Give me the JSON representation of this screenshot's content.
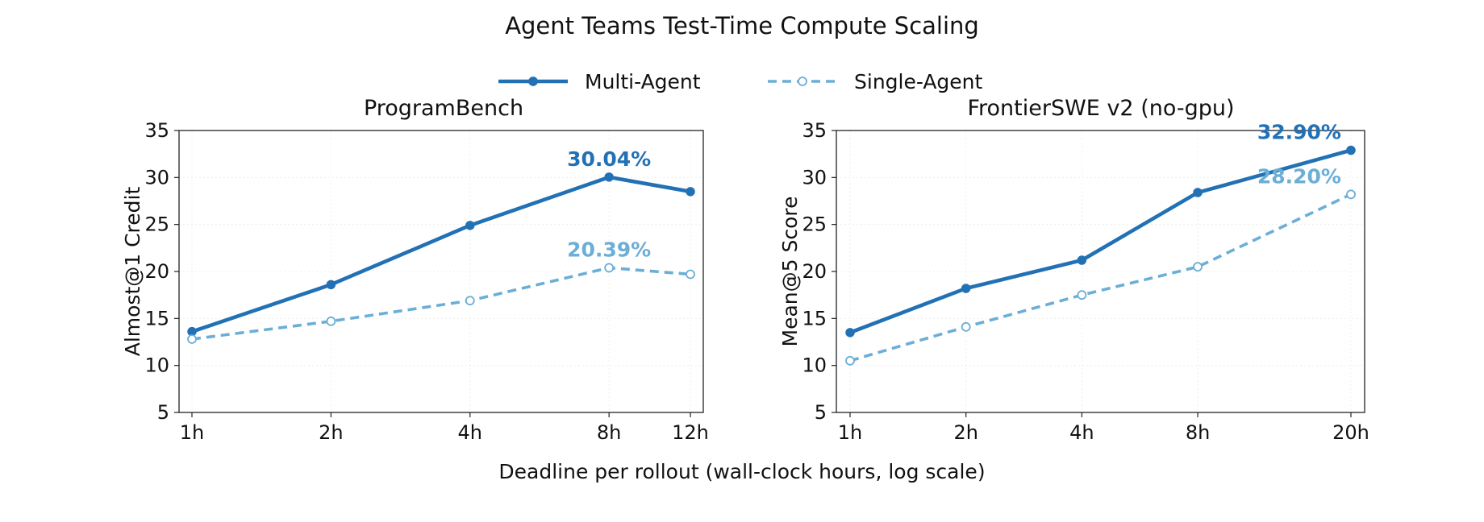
{
  "figure": {
    "title": "Agent Teams Test-Time Compute Scaling",
    "xlabel": "Deadline per rollout (wall-clock hours, log scale)"
  },
  "legend": {
    "placement": "top-center",
    "items": [
      {
        "name": "Multi-Agent",
        "color": "#2271b5",
        "style": "solid",
        "marker": "filled-circle"
      },
      {
        "name": "Single-Agent",
        "color": "#6baed6",
        "style": "dashed",
        "marker": "open-circle"
      }
    ]
  },
  "chart_data": [
    {
      "type": "line",
      "title": "ProgramBench",
      "ylabel": "Almost@1 Credit",
      "xscale": "log",
      "x": [
        1,
        2,
        4,
        8,
        12
      ],
      "xtick_labels": [
        "1h",
        "2h",
        "4h",
        "8h",
        "12h"
      ],
      "ylim": [
        5,
        35
      ],
      "yticks": [
        5,
        10,
        15,
        20,
        25,
        30,
        35
      ],
      "grid": true,
      "series": [
        {
          "name": "Multi-Agent",
          "color": "#2271b5",
          "style": "solid",
          "marker": "filled-circle",
          "values": [
            13.6,
            18.6,
            24.9,
            30.04,
            28.5
          ]
        },
        {
          "name": "Single-Agent",
          "color": "#6baed6",
          "style": "dashed",
          "marker": "open-circle",
          "values": [
            12.8,
            14.7,
            16.9,
            20.39,
            19.7
          ]
        }
      ],
      "annotations": [
        {
          "text": "30.04%",
          "series": "Multi-Agent",
          "x": 8,
          "y": 30.04,
          "color": "#2271b5"
        },
        {
          "text": "20.39%",
          "series": "Single-Agent",
          "x": 8,
          "y": 20.39,
          "color": "#6baed6"
        }
      ]
    },
    {
      "type": "line",
      "title": "FrontierSWE v2 (no-gpu)",
      "ylabel": "Mean@5 Score",
      "xscale": "log",
      "x": [
        1,
        2,
        4,
        8,
        20
      ],
      "xtick_labels": [
        "1h",
        "2h",
        "4h",
        "8h",
        "20h"
      ],
      "ylim": [
        5,
        35
      ],
      "yticks": [
        5,
        10,
        15,
        20,
        25,
        30,
        35
      ],
      "grid": true,
      "series": [
        {
          "name": "Multi-Agent",
          "color": "#2271b5",
          "style": "solid",
          "marker": "filled-circle",
          "values": [
            13.5,
            18.2,
            21.2,
            28.4,
            32.9
          ]
        },
        {
          "name": "Single-Agent",
          "color": "#6baed6",
          "style": "dashed",
          "marker": "open-circle",
          "values": [
            10.5,
            14.1,
            17.5,
            20.5,
            28.2
          ]
        }
      ],
      "annotations": [
        {
          "text": "32.90%",
          "series": "Multi-Agent",
          "x": 20,
          "y": 32.9,
          "color": "#2271b5"
        },
        {
          "text": "28.20%",
          "series": "Single-Agent",
          "x": 20,
          "y": 28.2,
          "color": "#6baed6"
        }
      ]
    }
  ]
}
